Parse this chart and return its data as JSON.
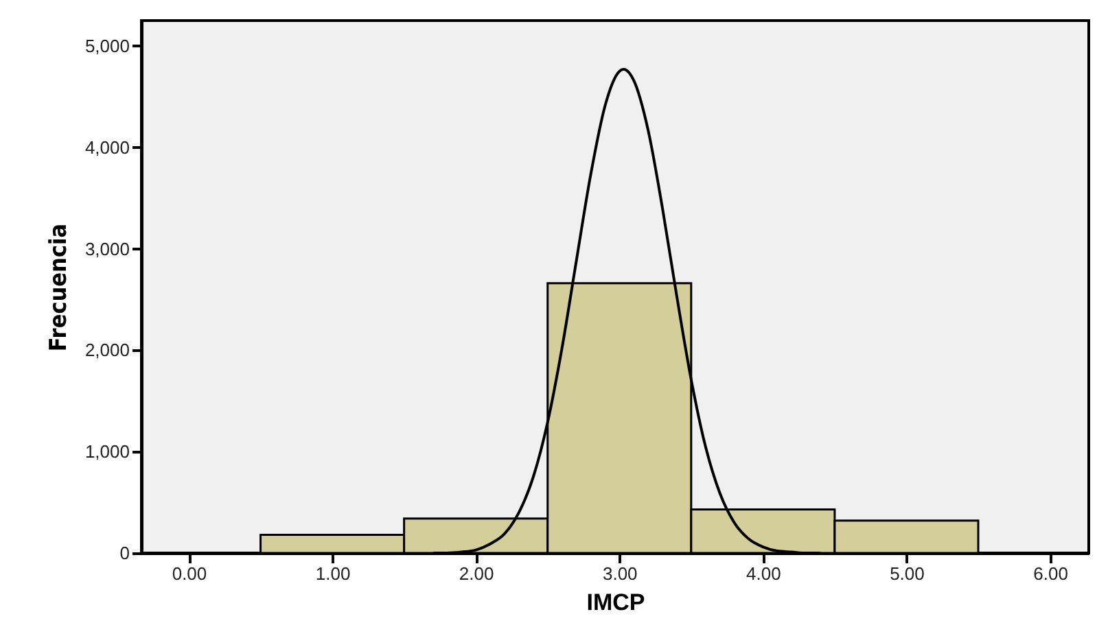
{
  "chart_data": {
    "type": "histogram",
    "xlabel": "IMCP",
    "ylabel": "Frecuencia",
    "bins": [
      0.5,
      1.5,
      2.5,
      3.5,
      4.5,
      5.5
    ],
    "values": [
      180,
      340,
      2660,
      430,
      320
    ],
    "color": "#d3ce9a",
    "series": [
      {
        "type": "line",
        "color": "#000000",
        "x": [
          1.7,
          1.8,
          1.9,
          2.0,
          2.1,
          2.2,
          2.3,
          2.4,
          2.5,
          2.6,
          2.7,
          2.8,
          2.9,
          3.0,
          3.03,
          3.1,
          3.2,
          3.3,
          3.4,
          3.5,
          3.6,
          3.7,
          3.8,
          3.9,
          4.0,
          4.1,
          4.2,
          4.3,
          4.4
        ],
        "values": [
          0,
          0,
          10,
          30,
          90,
          190,
          400,
          750,
          1290,
          2020,
          2880,
          3730,
          4410,
          4750,
          4770,
          4660,
          4170,
          3400,
          2530,
          1710,
          1050,
          590,
          300,
          140,
          60,
          20,
          10,
          0,
          0
        ]
      }
    ],
    "xlim": [
      -0.33,
      6.27
    ],
    "ylim": [
      0,
      5250
    ],
    "xticks": [
      {
        "value": 0,
        "label": "0.00"
      },
      {
        "value": 1,
        "label": "1.00"
      },
      {
        "value": 2,
        "label": "2.00"
      },
      {
        "value": 3,
        "label": "3.00"
      },
      {
        "value": 4,
        "label": "4.00"
      },
      {
        "value": 5,
        "label": "5.00"
      },
      {
        "value": 6,
        "label": "6.00"
      }
    ],
    "yticks": [
      0,
      {
        "value": 1000,
        "label": "1,000"
      },
      {
        "value": 2000,
        "label": "2,000"
      },
      {
        "value": 3000,
        "label": "3,000"
      },
      {
        "value": 4000,
        "label": "4,000"
      },
      {
        "value": 5000,
        "label": "5,000"
      }
    ],
    "grid": false
  }
}
